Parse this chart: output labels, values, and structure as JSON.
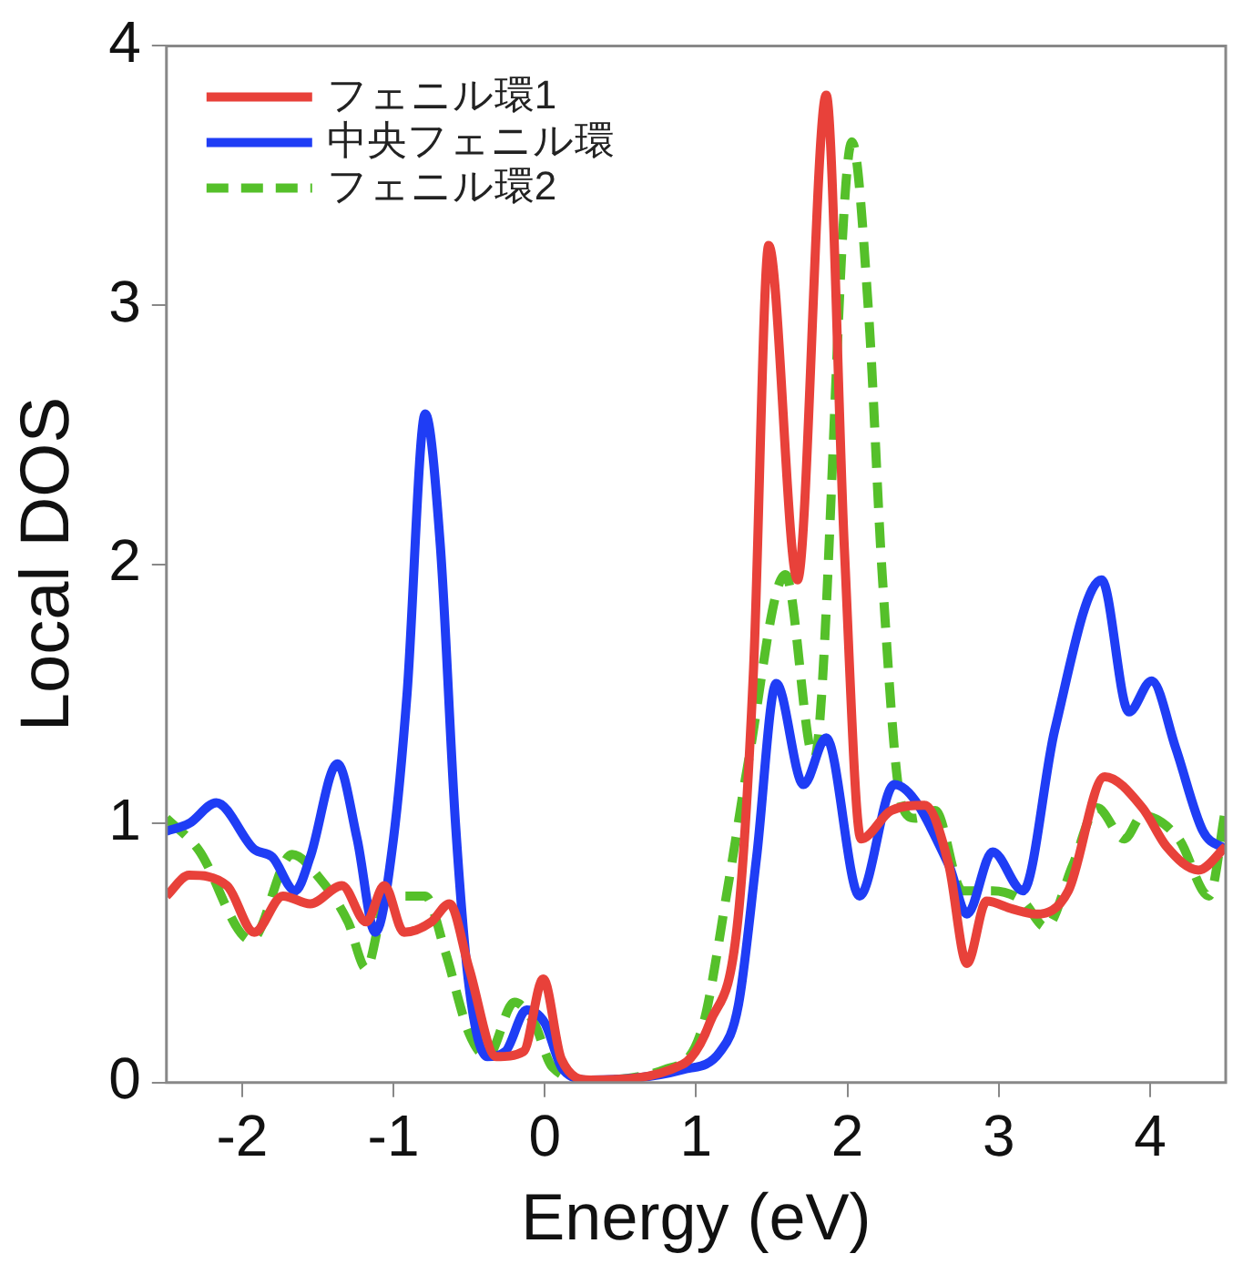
{
  "chart_data": {
    "type": "line",
    "xlabel": "Energy (eV)",
    "ylabel": "Local DOS",
    "xlim": [
      -2.5,
      4.5
    ],
    "xticks": [
      -2,
      -1,
      0,
      1,
      2,
      3,
      4
    ],
    "ylim": [
      0,
      4
    ],
    "yticks": [
      0,
      1,
      2,
      3,
      4
    ],
    "grid": false,
    "legend": "top left",
    "marker": "none",
    "series": [
      {
        "name": "フェニル環1",
        "color": "#e8413a",
        "line_style": "solid",
        "x": [
          -2.5,
          -2.35,
          -2.1,
          -1.92,
          -1.73,
          -1.55,
          -1.34,
          -1.18,
          -1.06,
          -0.93,
          -0.75,
          -0.63,
          -0.5,
          -0.32,
          -0.14,
          -0.01,
          0.11,
          0.3,
          0.91,
          1.09,
          1.28,
          1.38,
          1.48,
          1.67,
          1.86,
          1.98,
          2.09,
          2.29,
          2.51,
          2.67,
          2.79,
          2.92,
          3.09,
          3.25,
          3.46,
          3.7,
          3.95,
          4.11,
          4.32,
          4.5
        ],
        "values": [
          0.72,
          0.8,
          0.76,
          0.58,
          0.72,
          0.69,
          0.76,
          0.62,
          0.76,
          0.58,
          0.62,
          0.69,
          0.44,
          0.1,
          0.12,
          0.4,
          0.09,
          0.01,
          0.07,
          0.23,
          0.65,
          1.6,
          3.23,
          1.94,
          3.81,
          2.06,
          0.94,
          1.05,
          1.07,
          0.84,
          0.46,
          0.7,
          0.67,
          0.65,
          0.74,
          1.18,
          1.06,
          0.91,
          0.82,
          0.91
        ]
      },
      {
        "name": "中央フェニル環",
        "color": "#1f3df5",
        "line_style": "solid",
        "x": [
          -2.5,
          -2.35,
          -2.17,
          -1.92,
          -1.8,
          -1.65,
          -1.55,
          -1.37,
          -1.24,
          -1.12,
          -1.0,
          -0.91,
          -0.79,
          -0.69,
          -0.59,
          -0.5,
          -0.38,
          -0.26,
          -0.12,
          0.0,
          0.12,
          0.3,
          0.91,
          1.16,
          1.28,
          1.4,
          1.53,
          1.71,
          1.86,
          2.08,
          2.31,
          2.67,
          2.79,
          2.96,
          3.16,
          3.37,
          3.68,
          3.86,
          4.01,
          4.17,
          4.35,
          4.5
        ],
        "values": [
          0.97,
          1.0,
          1.08,
          0.9,
          0.87,
          0.74,
          0.87,
          1.23,
          0.94,
          0.58,
          0.94,
          1.5,
          2.58,
          2.07,
          1.0,
          0.37,
          0.1,
          0.12,
          0.28,
          0.23,
          0.05,
          0.01,
          0.05,
          0.12,
          0.3,
          0.87,
          1.54,
          1.15,
          1.33,
          0.72,
          1.15,
          0.84,
          0.65,
          0.89,
          0.74,
          1.36,
          1.94,
          1.43,
          1.55,
          1.29,
          0.97,
          0.9
        ]
      },
      {
        "name": "フェニル環2",
        "color": "#55c02a",
        "line_style": "dashed",
        "x": [
          -2.5,
          -2.29,
          -1.94,
          -1.67,
          -1.49,
          -1.3,
          -1.18,
          -1.06,
          -0.96,
          -0.79,
          -0.66,
          -0.5,
          -0.38,
          -0.2,
          -0.07,
          0.05,
          0.3,
          0.79,
          1.03,
          1.22,
          1.34,
          1.59,
          1.78,
          2.03,
          2.14,
          2.23,
          2.36,
          2.45,
          2.58,
          2.76,
          2.96,
          3.16,
          3.31,
          3.49,
          3.65,
          3.83,
          3.95,
          4.19,
          4.39,
          4.5
        ],
        "values": [
          1.02,
          0.9,
          0.55,
          0.88,
          0.79,
          0.62,
          0.44,
          0.69,
          0.72,
          0.72,
          0.51,
          0.19,
          0.1,
          0.31,
          0.23,
          0.06,
          0.01,
          0.05,
          0.19,
          0.79,
          1.22,
          1.96,
          1.25,
          3.63,
          2.97,
          1.96,
          1.07,
          1.02,
          1.05,
          0.74,
          0.74,
          0.7,
          0.6,
          0.84,
          1.06,
          0.94,
          1.03,
          0.94,
          0.72,
          1.06
        ]
      }
    ]
  }
}
